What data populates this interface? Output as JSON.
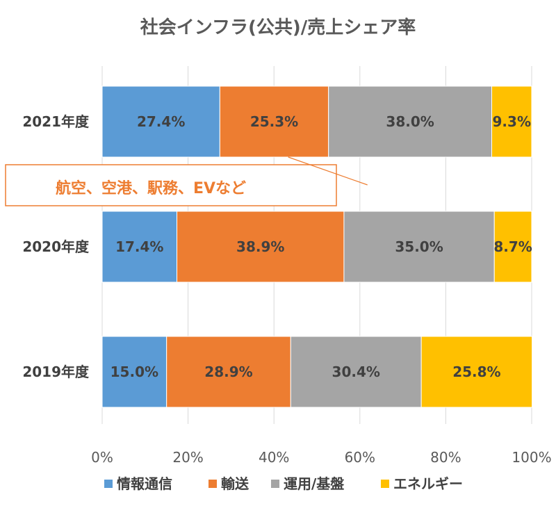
{
  "chart_data": {
    "type": "bar",
    "orientation": "horizontal",
    "stacked": "percent",
    "title": "社会インフラ(公共)/売上シェア率",
    "categories": [
      "2021年度",
      "2020年度",
      "2019年度"
    ],
    "series": [
      {
        "name": "情報通信",
        "color": "#5B9BD5",
        "values": [
          27.4,
          17.4,
          15.0
        ],
        "labels": [
          "27.4%",
          "17.4%",
          "15.0%"
        ]
      },
      {
        "name": "輸送",
        "color": "#ED7D31",
        "values": [
          25.3,
          38.9,
          28.9
        ],
        "labels": [
          "25.3%",
          "38.9%",
          "28.9%"
        ]
      },
      {
        "name": "運用/基盤",
        "color": "#A5A5A5",
        "values": [
          38.0,
          35.0,
          30.4
        ],
        "labels": [
          "38.0%",
          "35.0%",
          "30.4%"
        ]
      },
      {
        "name": "エネルギー",
        "color": "#FFC000",
        "values": [
          9.3,
          8.7,
          25.8
        ],
        "labels": [
          "9.3%",
          "8.7%",
          "25.8%"
        ]
      }
    ],
    "xlim": [
      0,
      100
    ],
    "xticks": [
      "0%",
      "20%",
      "40%",
      "60%",
      "80%",
      "100%"
    ],
    "grid": true,
    "legend_position": "bottom",
    "annotation": {
      "text": "航空、空港、駅務、EVなど",
      "color": "#ED7D31",
      "target_category": "2021年度",
      "target_series": "輸送"
    }
  }
}
